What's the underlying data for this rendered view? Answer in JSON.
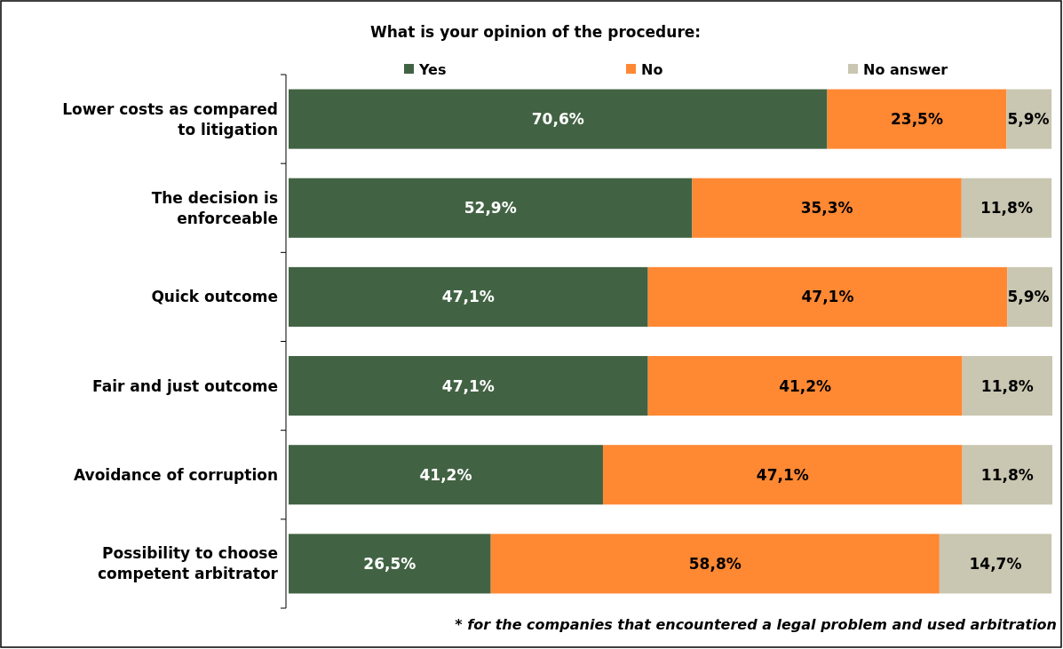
{
  "chart_data": {
    "type": "bar",
    "orientation": "horizontal",
    "stacked": true,
    "title": "What is your opinion of the procedure:",
    "categories": [
      "Lower costs as compared to litigation",
      "The decision is enforceable",
      "Quick outcome",
      "Fair and just outcome",
      "Avoidance of corruption",
      "Possibility to choose competent arbitrator"
    ],
    "series": [
      {
        "name": "Yes",
        "color": "#426343",
        "values": [
          70.6,
          52.9,
          47.1,
          47.1,
          41.2,
          26.5
        ],
        "value_labels": [
          "70,6%",
          "52,9%",
          "47,1%",
          "47,1%",
          "41,2%",
          "26,5%"
        ]
      },
      {
        "name": "No",
        "color": "#ff8833",
        "values": [
          23.5,
          35.3,
          47.1,
          41.2,
          47.1,
          58.8
        ],
        "value_labels": [
          "23,5%",
          "35,3%",
          "47,1%",
          "41,2%",
          "47,1%",
          "58,8%"
        ]
      },
      {
        "name": "No answer",
        "color": "#c9c6b1",
        "values": [
          5.9,
          11.8,
          5.9,
          11.8,
          11.8,
          14.7
        ],
        "value_labels": [
          "5,9%",
          "11,8%",
          "5,9%",
          "11,8%",
          "11,8%",
          "14,7%"
        ]
      }
    ],
    "tick_labels": "y",
    "legend": "top",
    "annotations": [
      "* for the companies that encountered a legal problem and used arbitration"
    ]
  }
}
